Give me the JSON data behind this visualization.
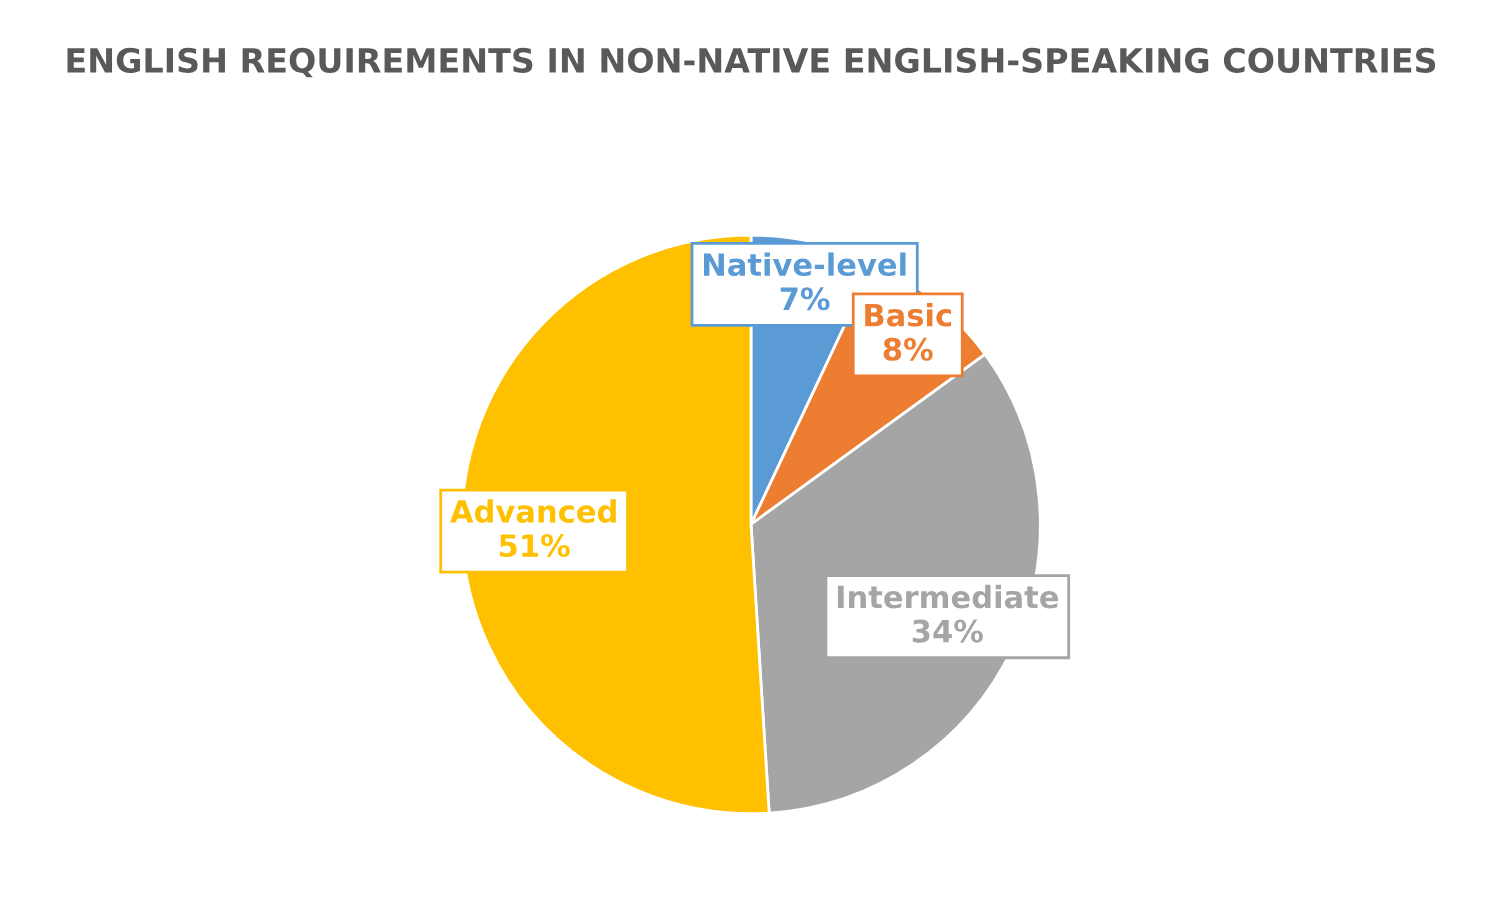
{
  "chart_data": {
    "type": "pie",
    "title": "ENGLISH REQUIREMENTS IN NON-NATIVE ENGLISH-SPEAKING COUNTRIES",
    "categories": [
      "Native-level",
      "Basic",
      "Intermediate",
      "Advanced"
    ],
    "values": [
      7,
      8,
      34,
      51
    ],
    "colors": [
      "#5b9bd5",
      "#ed7d31",
      "#a5a5a5",
      "#ffc000"
    ],
    "value_labels": [
      "7%",
      "8%",
      "34%",
      "51%"
    ]
  }
}
